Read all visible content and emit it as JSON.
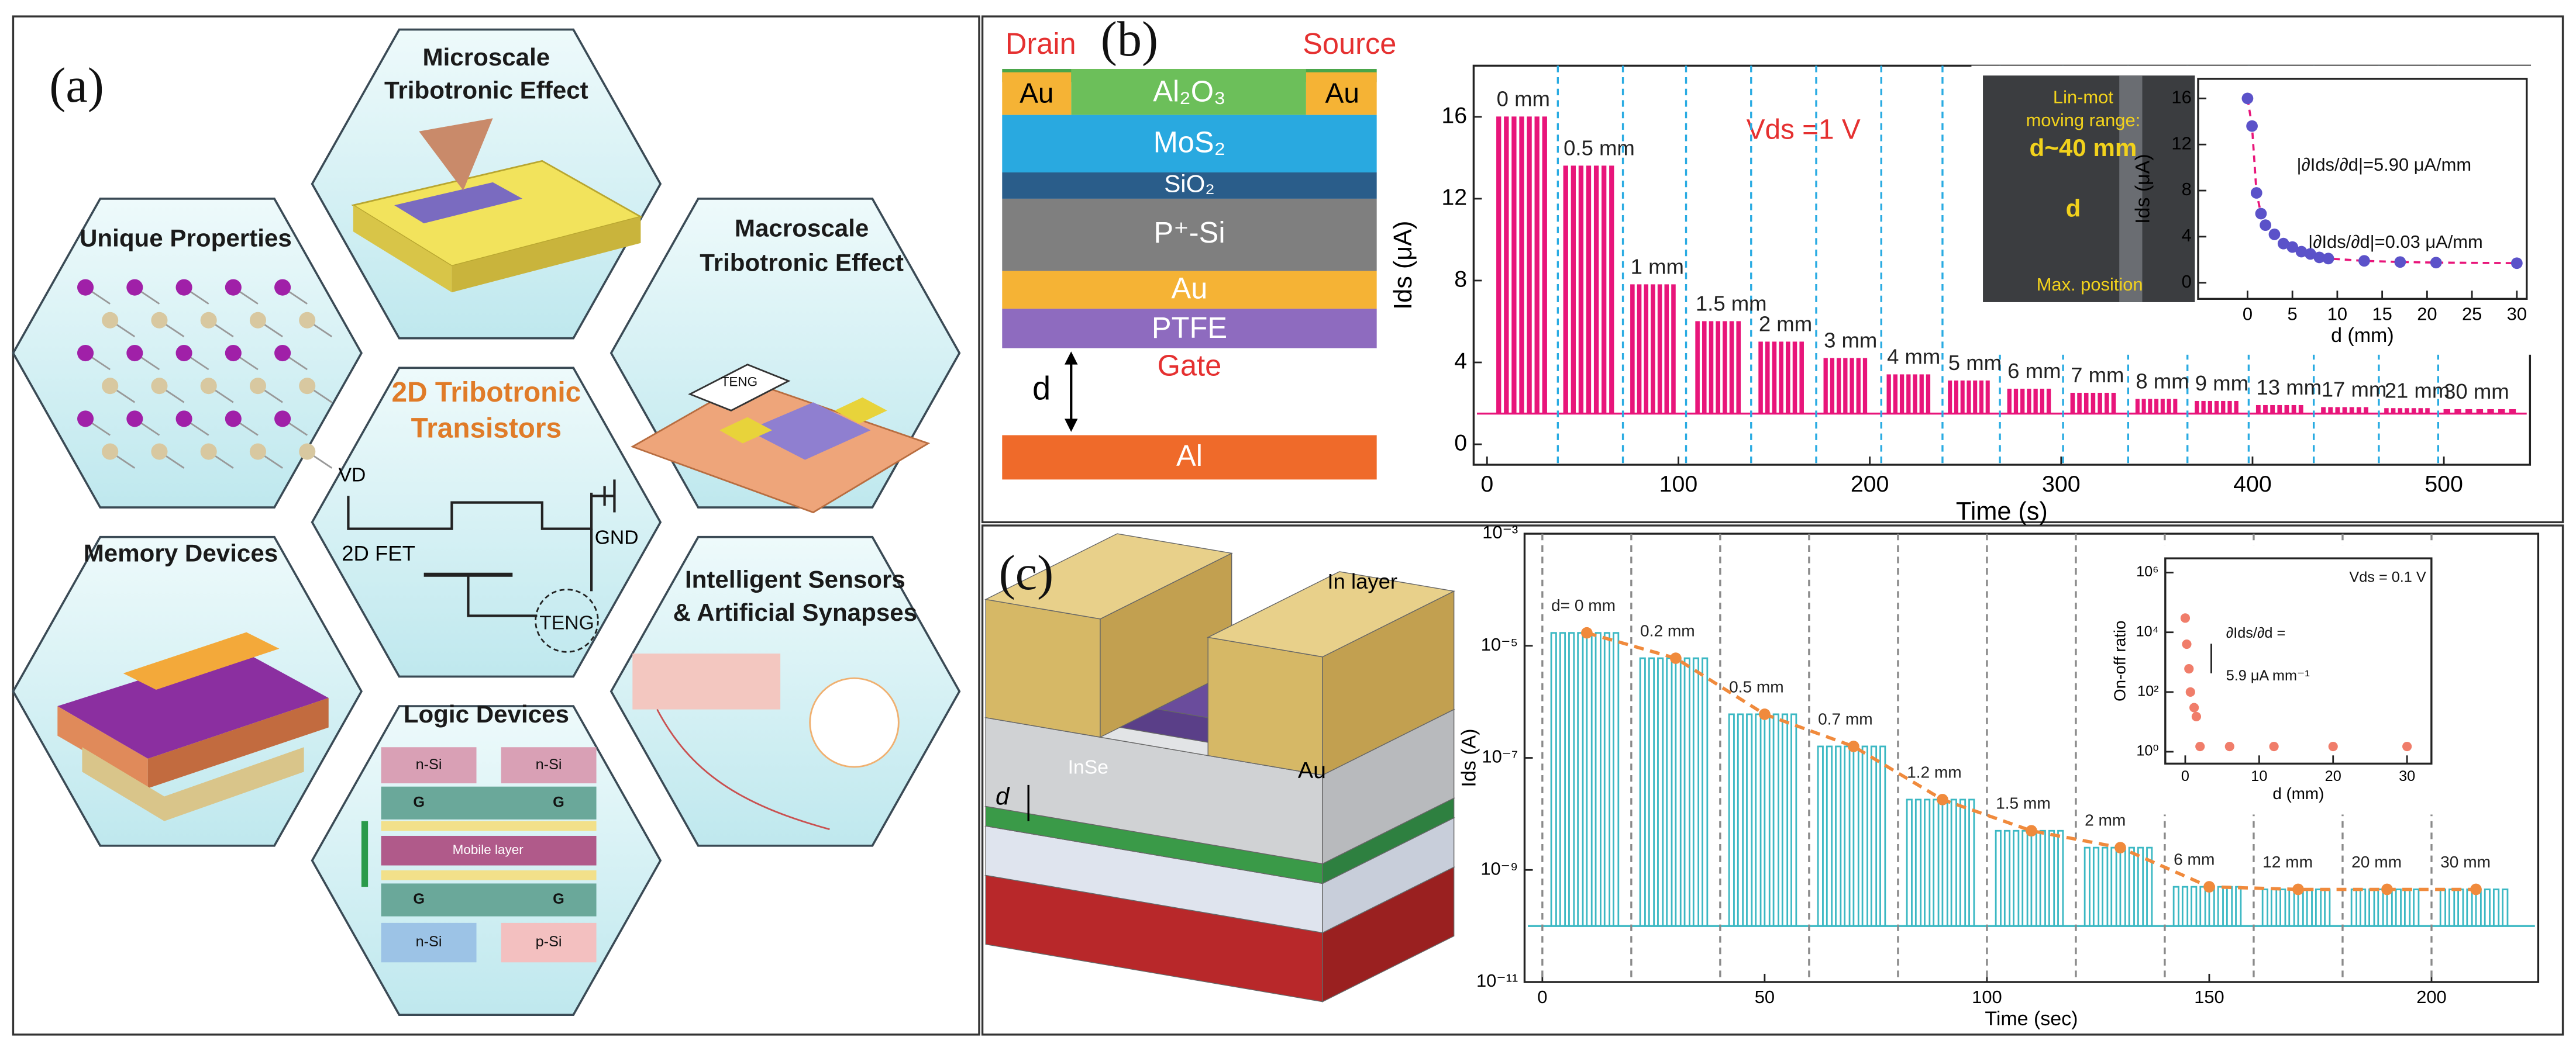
{
  "panel_a": {
    "label": "(a)",
    "hexagons": [
      {
        "title": [
          "Microscale",
          "Tribotronic Effect"
        ]
      },
      {
        "title": [
          "Unique Properties"
        ]
      },
      {
        "title": [
          "Macroscale",
          "Tribotronic Effect"
        ]
      },
      {
        "title": [
          "2D Tribotronic",
          "Transistors"
        ]
      },
      {
        "title": [
          "Memory Devices"
        ]
      },
      {
        "title": [
          "Intelligent Sensors",
          "& Artificial Synapses"
        ]
      },
      {
        "title": [
          "Logic Devices"
        ]
      }
    ],
    "macro_teng": "TENG",
    "circuit": {
      "vd": "VD",
      "fet": "2D FET",
      "gnd": "GND",
      "teng": "TENG"
    },
    "logic": {
      "top_left": "n-Si",
      "top_right": "n-Si",
      "gate": "G",
      "mobile": "Mobile layer",
      "bottom_left": "n-Si",
      "bottom_right": "p-Si"
    }
  },
  "panel_b": {
    "label": "(b)",
    "stack": {
      "drain": "Drain",
      "source": "Source",
      "au_left": "Au",
      "al2o3": "Al₂O₃",
      "au_right": "Au",
      "mos2": "MoS₂",
      "sio2": "SiO₂",
      "psi": "P⁺-Si",
      "au": "Au",
      "ptfe": "PTFE",
      "gate": "Gate",
      "d": "d",
      "al": "Al"
    },
    "photo": {
      "lines": [
        "Lin-mot",
        "moving range:"
      ],
      "range": "d~40 mm",
      "d": "d",
      "max": "Max. position"
    }
  },
  "panel_c": {
    "label": "(c)",
    "device": {
      "in_layer": "In layer",
      "inse": "InSe",
      "au": "Au",
      "d": "d"
    }
  },
  "chart_data": [
    {
      "type": "pulse",
      "xlabel": "Time (s)",
      "ylabel": "Ids (μA)",
      "annotations": [
        "Vds =1 V"
      ],
      "color": "#e8157a",
      "separator_color": "#29abe2",
      "xlim": [
        -7,
        545
      ],
      "xticks": [
        0,
        100,
        200,
        300,
        400,
        500
      ],
      "ylim": [
        -1,
        18.5
      ],
      "yticks": [
        0,
        4,
        8,
        12,
        16
      ],
      "baseline": 1.5,
      "segments": [
        {
          "label": "0 mm",
          "t0": 5,
          "t1": 33,
          "peak": 16
        },
        {
          "label": "0.5 mm",
          "t0": 40,
          "t1": 68,
          "peak": 13.6
        },
        {
          "label": "1 mm",
          "t0": 75,
          "t1": 100,
          "peak": 7.8
        },
        {
          "label": "1.5 mm",
          "t0": 109,
          "t1": 134,
          "peak": 6
        },
        {
          "label": "2 mm",
          "t0": 142,
          "t1": 167,
          "peak": 5
        },
        {
          "label": "3 mm",
          "t0": 176,
          "t1": 200,
          "peak": 4.2
        },
        {
          "label": "4 mm",
          "t0": 209,
          "t1": 233,
          "peak": 3.4
        },
        {
          "label": "5 mm",
          "t0": 241,
          "t1": 264,
          "peak": 3.1
        },
        {
          "label": "6 mm",
          "t0": 272,
          "t1": 296,
          "peak": 2.7
        },
        {
          "label": "7 mm",
          "t0": 305,
          "t1": 330,
          "peak": 2.5
        },
        {
          "label": "8 mm",
          "t0": 339,
          "t1": 362,
          "peak": 2.2
        },
        {
          "label": "9 mm",
          "t0": 370,
          "t1": 394,
          "peak": 2.1
        },
        {
          "label": "13 mm",
          "t0": 402,
          "t1": 428,
          "peak": 1.9
        },
        {
          "label": "17 mm",
          "t0": 436,
          "t1": 462,
          "peak": 1.8
        },
        {
          "label": "21 mm",
          "t0": 469,
          "t1": 494,
          "peak": 1.75
        },
        {
          "label": "30 mm",
          "t0": 500,
          "t1": 540,
          "peak": 1.7
        }
      ],
      "separators": [
        37,
        71,
        104,
        138,
        172,
        206,
        238,
        268,
        301,
        335,
        366,
        398,
        432,
        466,
        497
      ]
    },
    {
      "type": "scatter",
      "xlabel": "d (mm)",
      "ylabel": "Ids (μA)",
      "annotations": [
        "|∂Ids/∂d|=5.90 μA/mm",
        "|∂Ids/∂d|=0.03 μA/mm"
      ],
      "color": "#5b52c9",
      "fit_color": "#e8157a",
      "x": [
        0,
        0.5,
        1,
        1.5,
        2,
        3,
        4,
        5,
        6,
        7,
        8,
        9,
        13,
        17,
        21,
        30
      ],
      "values": [
        16,
        13.6,
        7.8,
        6,
        5,
        4.2,
        3.4,
        3.1,
        2.7,
        2.5,
        2.2,
        2.1,
        1.9,
        1.8,
        1.75,
        1.7
      ],
      "xlim": [
        -5.5,
        31.1
      ],
      "xticks": [
        0,
        5,
        10,
        15,
        20,
        25,
        30
      ],
      "ylim": [
        -1.4,
        17.7
      ],
      "yticks": [
        0,
        4,
        8,
        12,
        16
      ]
    },
    {
      "type": "pulse",
      "log_y": true,
      "xlabel": "Time (sec)",
      "ylabel": "Ids (A)",
      "annotations": [],
      "color": "#3bb8c3",
      "marker_color": "#f08a3c",
      "separator_color": "#8a8a8a",
      "xlim": [
        -4,
        224
      ],
      "xticks": [
        0,
        50,
        100,
        150,
        200
      ],
      "ylim": [
        1e-11,
        0.001
      ],
      "yticks": [
        {
          "value": 1e-11,
          "label": "10⁻¹¹"
        },
        {
          "value": 1e-09,
          "label": "10⁻⁹"
        },
        {
          "value": 1e-07,
          "label": "10⁻⁷"
        },
        {
          "value": 1e-05,
          "label": "10⁻⁵"
        },
        {
          "value": 0.001,
          "label": "10⁻³"
        }
      ],
      "baseline": 1e-10,
      "segments": [
        {
          "label": "d= 0 mm",
          "t0": 2,
          "t1": 18,
          "peak": 1.7e-05
        },
        {
          "label": "0.2 mm",
          "t0": 22,
          "t1": 38,
          "peak": 6e-06
        },
        {
          "label": "0.5 mm",
          "t0": 42,
          "t1": 58,
          "peak": 6e-07
        },
        {
          "label": "0.7 mm",
          "t0": 62,
          "t1": 78,
          "peak": 1.6e-07
        },
        {
          "label": "1.2 mm",
          "t0": 82,
          "t1": 98,
          "peak": 1.8e-08
        },
        {
          "label": "1.5 mm",
          "t0": 102,
          "t1": 118,
          "peak": 5e-09
        },
        {
          "label": "2 mm",
          "t0": 122,
          "t1": 138,
          "peak": 2.5e-09
        },
        {
          "label": "6 mm",
          "t0": 142,
          "t1": 158,
          "peak": 5e-10
        },
        {
          "label": "12 mm",
          "t0": 162,
          "t1": 178,
          "peak": 4.5e-10
        },
        {
          "label": "20 mm",
          "t0": 182,
          "t1": 198,
          "peak": 4.5e-10
        },
        {
          "label": "30 mm",
          "t0": 202,
          "t1": 218,
          "peak": 4.5e-10
        }
      ],
      "separators": [
        0,
        20,
        40,
        60,
        80,
        100,
        120,
        140,
        160,
        180,
        200
      ]
    },
    {
      "type": "scatter",
      "log_y": true,
      "xlabel": "d (mm)",
      "ylabel": "On-off ratio",
      "annotations": [
        "Vds = 0.1 V",
        "∂Ids/∂d =",
        "5.9 μA mm⁻¹"
      ],
      "color": "#f07d6a",
      "x": [
        0,
        0.2,
        0.5,
        0.7,
        1.2,
        1.5,
        2,
        6,
        12,
        20,
        30
      ],
      "values": [
        30000,
        4000,
        600,
        100,
        30,
        15,
        1.5,
        1.5,
        1.5,
        1.5,
        1.5
      ],
      "xlim": [
        -2.7,
        33.3
      ],
      "xticks": [
        0,
        10,
        20,
        30
      ],
      "ylim": [
        0.4,
        3000000
      ],
      "yticks": [
        {
          "value": 1,
          "label": "10⁰"
        },
        {
          "value": 100,
          "label": "10²"
        },
        {
          "value": 10000,
          "label": "10⁴"
        },
        {
          "value": 1000000,
          "label": "10⁶"
        }
      ]
    }
  ]
}
